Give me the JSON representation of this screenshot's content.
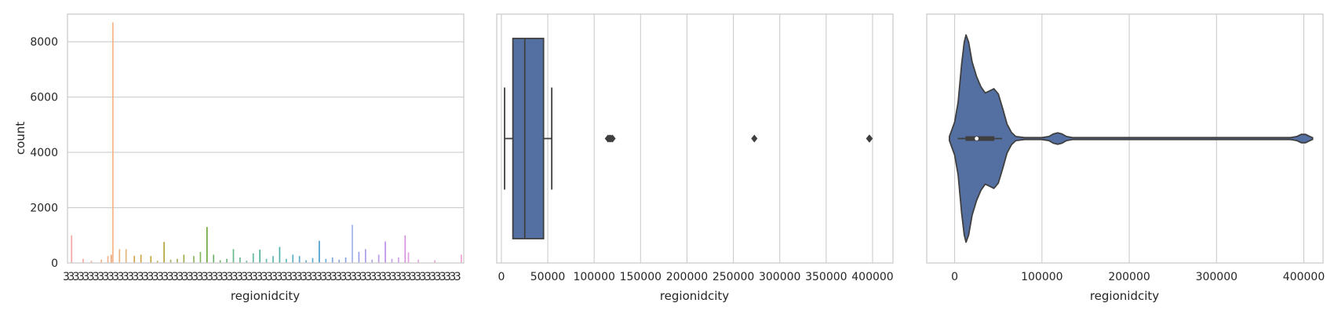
{
  "chart_data": [
    {
      "type": "bar",
      "xlabel": "regionidcity",
      "ylabel": "count",
      "ylim": [
        0,
        9000
      ],
      "yticks": [
        0,
        2000,
        4000,
        6000,
        8000
      ],
      "grid": "horizontal",
      "xtick_note": "overlapping category tick labels (illegible)",
      "bars": [
        {
          "i": 2,
          "v": 1000,
          "color": "#f4a6a3"
        },
        {
          "i": 9,
          "v": 150,
          "color": "#f4a6a3"
        },
        {
          "i": 14,
          "v": 80,
          "color": "#f3b19c"
        },
        {
          "i": 20,
          "v": 120,
          "color": "#f0b28f"
        },
        {
          "i": 24,
          "v": 250,
          "color": "#f0b28f"
        },
        {
          "i": 26,
          "v": 300,
          "color": "#eda070"
        },
        {
          "i": 27,
          "v": 8700,
          "color": "#f5b48a"
        },
        {
          "i": 31,
          "v": 500,
          "color": "#e9b27e"
        },
        {
          "i": 35,
          "v": 500,
          "color": "#dfb67e"
        },
        {
          "i": 40,
          "v": 260,
          "color": "#cfa245"
        },
        {
          "i": 44,
          "v": 300,
          "color": "#cfa245"
        },
        {
          "i": 50,
          "v": 250,
          "color": "#c2a63a"
        },
        {
          "i": 54,
          "v": 80,
          "color": "#bfb05a"
        },
        {
          "i": 58,
          "v": 760,
          "color": "#b4a53a"
        },
        {
          "i": 62,
          "v": 120,
          "color": "#a8ae5a"
        },
        {
          "i": 66,
          "v": 150,
          "color": "#a8ae5a"
        },
        {
          "i": 70,
          "v": 300,
          "color": "#99ae4a"
        },
        {
          "i": 76,
          "v": 250,
          "color": "#8fb35a"
        },
        {
          "i": 80,
          "v": 400,
          "color": "#84b75a"
        },
        {
          "i": 84,
          "v": 1300,
          "color": "#6aa83a"
        },
        {
          "i": 88,
          "v": 300,
          "color": "#6fb56a"
        },
        {
          "i": 92,
          "v": 100,
          "color": "#6fb56a"
        },
        {
          "i": 96,
          "v": 150,
          "color": "#6fb57a"
        },
        {
          "i": 100,
          "v": 500,
          "color": "#66b78a"
        },
        {
          "i": 104,
          "v": 200,
          "color": "#66b78a"
        },
        {
          "i": 108,
          "v": 80,
          "color": "#66b79a"
        },
        {
          "i": 112,
          "v": 350,
          "color": "#60b8a0"
        },
        {
          "i": 116,
          "v": 480,
          "color": "#4fae9a"
        },
        {
          "i": 120,
          "v": 150,
          "color": "#60b8aa"
        },
        {
          "i": 124,
          "v": 250,
          "color": "#5ab5b0"
        },
        {
          "i": 128,
          "v": 580,
          "color": "#4fb0ac"
        },
        {
          "i": 132,
          "v": 150,
          "color": "#60b8b8"
        },
        {
          "i": 136,
          "v": 300,
          "color": "#5ab0c0"
        },
        {
          "i": 140,
          "v": 250,
          "color": "#5aaac8"
        },
        {
          "i": 144,
          "v": 100,
          "color": "#6aafd0"
        },
        {
          "i": 148,
          "v": 180,
          "color": "#5aaad0"
        },
        {
          "i": 152,
          "v": 800,
          "color": "#4a9cd0"
        },
        {
          "i": 156,
          "v": 150,
          "color": "#6aaad8"
        },
        {
          "i": 160,
          "v": 200,
          "color": "#7aa8dc"
        },
        {
          "i": 164,
          "v": 120,
          "color": "#8aa8e0"
        },
        {
          "i": 168,
          "v": 200,
          "color": "#8aa0e0"
        },
        {
          "i": 172,
          "v": 1380,
          "color": "#a0b0ea"
        },
        {
          "i": 176,
          "v": 400,
          "color": "#9aa0e8"
        },
        {
          "i": 180,
          "v": 500,
          "color": "#a89ae8"
        },
        {
          "i": 184,
          "v": 120,
          "color": "#b4a0ea"
        },
        {
          "i": 188,
          "v": 300,
          "color": "#b89ae8"
        },
        {
          "i": 192,
          "v": 780,
          "color": "#c090e8"
        },
        {
          "i": 196,
          "v": 150,
          "color": "#c8a0ea"
        },
        {
          "i": 200,
          "v": 200,
          "color": "#d0a0e8"
        },
        {
          "i": 204,
          "v": 1000,
          "color": "#d890e0"
        },
        {
          "i": 206,
          "v": 380,
          "color": "#e0a0e0"
        },
        {
          "i": 212,
          "v": 120,
          "color": "#e8a8e0"
        },
        {
          "i": 222,
          "v": 100,
          "color": "#eca0d8"
        },
        {
          "i": 238,
          "v": 300,
          "color": "#f0a0d0"
        }
      ],
      "n_categories": 240
    },
    {
      "type": "box",
      "xlabel": "regionidcity",
      "xlim": [
        -5000,
        422000
      ],
      "xticks": [
        0,
        50000,
        100000,
        150000,
        200000,
        250000,
        300000,
        350000,
        400000
      ],
      "whisker_low": 3491,
      "q1": 12447,
      "median": 25218,
      "q3": 45457,
      "whisker_high": 54311,
      "outliers": [
        114800,
        116000,
        117200,
        118400,
        119800,
        272600,
        396300,
        396800
      ],
      "color": "#5470a3",
      "grid": "vertical"
    },
    {
      "type": "violin",
      "xlabel": "regionidcity",
      "xlim": [
        -32000,
        422000
      ],
      "xticks": [
        0,
        100000,
        200000,
        300000,
        400000
      ],
      "median": 25218,
      "q1": 12447,
      "q3": 45457,
      "whisker_low": 3491,
      "whisker_high": 54311,
      "density": [
        [
          -6000,
          0.02
        ],
        [
          -3000,
          0.09
        ],
        [
          0,
          0.16
        ],
        [
          4000,
          0.35
        ],
        [
          8000,
          0.72
        ],
        [
          11000,
          0.93
        ],
        [
          13000,
          1.0
        ],
        [
          16000,
          0.93
        ],
        [
          20000,
          0.74
        ],
        [
          25000,
          0.6
        ],
        [
          30000,
          0.5
        ],
        [
          35000,
          0.44
        ],
        [
          40000,
          0.46
        ],
        [
          45000,
          0.48
        ],
        [
          50000,
          0.43
        ],
        [
          55000,
          0.29
        ],
        [
          60000,
          0.14
        ],
        [
          65000,
          0.06
        ],
        [
          70000,
          0.02
        ],
        [
          80000,
          0.0
        ],
        [
          90000,
          0.0
        ],
        [
          100000,
          0.0
        ],
        [
          108000,
          0.02
        ],
        [
          113000,
          0.045
        ],
        [
          118000,
          0.055
        ],
        [
          123000,
          0.045
        ],
        [
          128000,
          0.02
        ],
        [
          135000,
          0.0
        ],
        [
          272000,
          0.0
        ],
        [
          385000,
          0.0
        ],
        [
          392000,
          0.02
        ],
        [
          397000,
          0.04
        ],
        [
          402000,
          0.04
        ],
        [
          407000,
          0.02
        ],
        [
          410000,
          0.0
        ]
      ],
      "color": "#5470a3",
      "grid": "vertical"
    }
  ]
}
